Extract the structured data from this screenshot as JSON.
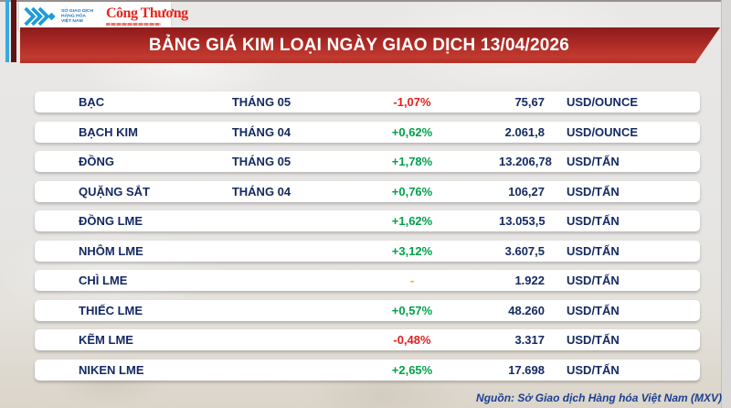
{
  "header": {
    "mxv_logo_lines": "SỞ GIAO DỊCH<br>HÀNG HÓA<br>VIỆT NAM",
    "mxv_text_plain": "SỞ GIAO DỊCH HÀNG HÓA VIỆT NAM",
    "congthuong_logo": "Công Thương"
  },
  "chart_data": {
    "type": "table",
    "title": "BẢNG GIÁ KIM LOẠI NGÀY GIAO DỊCH 13/04/2026",
    "rows": [
      {
        "name": "BẠC",
        "month": "THÁNG 05",
        "change": "-1,07%",
        "direction": "down",
        "price": "75,67",
        "unit": "USD/OUNCE"
      },
      {
        "name": "BẠCH KIM",
        "month": "THÁNG 04",
        "change": "+0,62%",
        "direction": "up",
        "price": "2.061,8",
        "unit": "USD/OUNCE"
      },
      {
        "name": "ĐỒNG",
        "month": "THÁNG 05",
        "change": "+1,78%",
        "direction": "up",
        "price": "13.206,78",
        "unit": "USD/TẤN"
      },
      {
        "name": "QUẶNG SẮT",
        "month": "THÁNG 04",
        "change": "+0,76%",
        "direction": "up",
        "price": "106,27",
        "unit": "USD/TẤN"
      },
      {
        "name": "ĐỒNG LME",
        "month": "",
        "change": "+1,62%",
        "direction": "up",
        "price": "13.053,5",
        "unit": "USD/TẤN"
      },
      {
        "name": "NHÔM LME",
        "month": "",
        "change": "+3,12%",
        "direction": "up",
        "price": "3.607,5",
        "unit": "USD/TẤN"
      },
      {
        "name": "CHÌ LME",
        "month": "",
        "change": "-",
        "direction": "flat",
        "price": "1.922",
        "unit": "USD/TẤN"
      },
      {
        "name": "THIẾC LME",
        "month": "",
        "change": "+0,57%",
        "direction": "up",
        "price": "48.260",
        "unit": "USD/TẤN"
      },
      {
        "name": "KẼM LME",
        "month": "",
        "change": "-0,48%",
        "direction": "down",
        "price": "3.317",
        "unit": "USD/TẤN"
      },
      {
        "name": "NIKEN LME",
        "month": "",
        "change": "+2,65%",
        "direction": "up",
        "price": "17.698",
        "unit": "USD/TẤN"
      }
    ]
  },
  "footer": {
    "source": "Nguồn: Sở Giao dịch Hàng hóa Việt Nam (MXV)"
  },
  "colors": {
    "up": "#00a14b",
    "down": "#e3201f",
    "flat": "#f7a600",
    "banner_top": "#8c1b1b",
    "banner_bottom": "#c23a30",
    "row_text": "#152a63",
    "background": "#e7e6e4"
  }
}
